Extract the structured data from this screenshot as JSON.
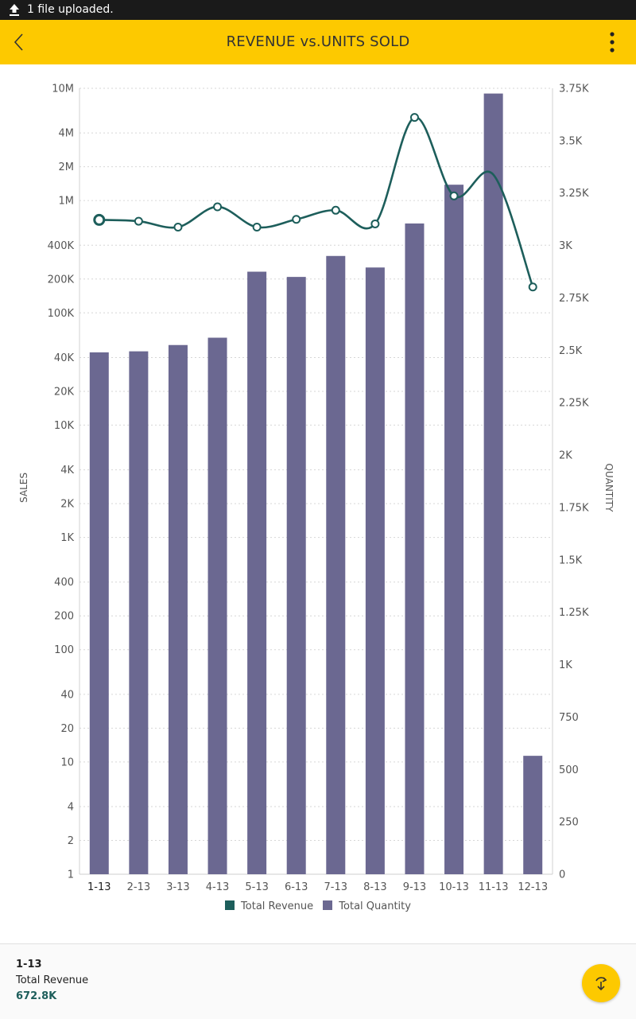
{
  "status_bar": {
    "message": "1 file uploaded.",
    "icon": "upload-icon"
  },
  "app_bar": {
    "title": "REVENUE vs.UNITS SOLD",
    "back_icon": "back-arrow-icon",
    "menu_icon": "more-vert-icon"
  },
  "colors": {
    "accent": "#fdc900",
    "revenue": "#1d5e5b",
    "quantity": "#6b6891"
  },
  "chart_data": {
    "type": "bar",
    "categories": [
      "1-13",
      "2-13",
      "3-13",
      "4-13",
      "5-13",
      "6-13",
      "7-13",
      "8-13",
      "9-13",
      "10-13",
      "11-13",
      "12-13"
    ],
    "series": [
      {
        "name": "Total Revenue",
        "type": "line",
        "axis": "left",
        "values": [
          672800,
          655000,
          580000,
          880000,
          580000,
          680000,
          820000,
          620000,
          5500000,
          1100000,
          1700000,
          170000
        ]
      },
      {
        "name": "Total Quantity",
        "type": "bar",
        "axis": "right",
        "values": [
          2490,
          2495,
          2525,
          2560,
          2875,
          2850,
          2950,
          2895,
          3105,
          3290,
          3725,
          565
        ]
      }
    ],
    "left_axis": {
      "label": "SALES",
      "scale": "log",
      "range": [
        1,
        10000000
      ],
      "ticks": [
        "10M",
        "4M",
        "2M",
        "1M",
        "400K",
        "200K",
        "100K",
        "40K",
        "20K",
        "10K",
        "4K",
        "2K",
        "1K",
        "400",
        "200",
        "100",
        "40",
        "20",
        "10",
        "4",
        "2",
        "1"
      ]
    },
    "right_axis": {
      "label": "QUANTITY",
      "scale": "linear",
      "range": [
        0,
        3750
      ],
      "ticks": [
        "3.75K",
        "3.5K",
        "3.25K",
        "3K",
        "2.75K",
        "2.5K",
        "2.25K",
        "2K",
        "1.75K",
        "1.5K",
        "1.25K",
        "1K",
        "750",
        "500",
        "250",
        "0"
      ]
    },
    "legend": {
      "position": "bottom",
      "entries": [
        "Total Revenue",
        "Total Quantity"
      ]
    },
    "grid": true
  },
  "selection": {
    "category": "1-13",
    "label": "Total Revenue",
    "value": "672.8K"
  },
  "fab": {
    "icon": "swap-rotate-icon"
  }
}
